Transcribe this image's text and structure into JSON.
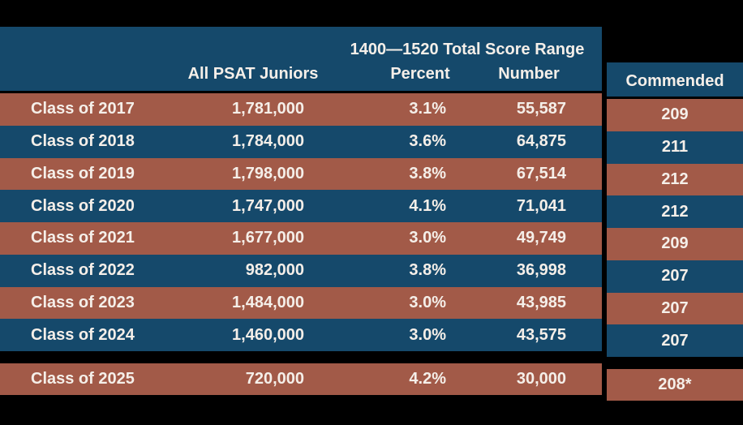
{
  "colors": {
    "header_and_even_row_blue": "#15496b",
    "odd_row_rust": "#a25a48",
    "background_black": "#000000",
    "text_offwhite": "#f5efe9"
  },
  "chart_data": {
    "type": "table",
    "span_header": "1400—1520 Total Score Range",
    "columns": [
      "All PSAT Juniors",
      "Percent",
      "Number",
      "Commended"
    ],
    "rows": [
      [
        "Class of 2017",
        "1,781,000",
        "3.1%",
        "55,587",
        "209"
      ],
      [
        "Class of 2018",
        "1,784,000",
        "3.6%",
        "64,875",
        "211"
      ],
      [
        "Class of 2019",
        "1,798,000",
        "3.8%",
        "67,514",
        "212"
      ],
      [
        "Class of 2020",
        "1,747,000",
        "4.1%",
        "71,041",
        "212"
      ],
      [
        "Class of 2021",
        "1,677,000",
        "3.0%",
        "49,749",
        "209"
      ],
      [
        "Class of 2022",
        "982,000",
        "3.8%",
        "36,998",
        "207"
      ],
      [
        "Class of 2023",
        "1,484,000",
        "3.0%",
        "43,985",
        "207"
      ],
      [
        "Class of 2024",
        "1,460,000",
        "3.0%",
        "43,575",
        "207"
      ],
      [
        "Class of 2025",
        "720,000",
        "4.2%",
        "30,000",
        "208*"
      ]
    ]
  }
}
